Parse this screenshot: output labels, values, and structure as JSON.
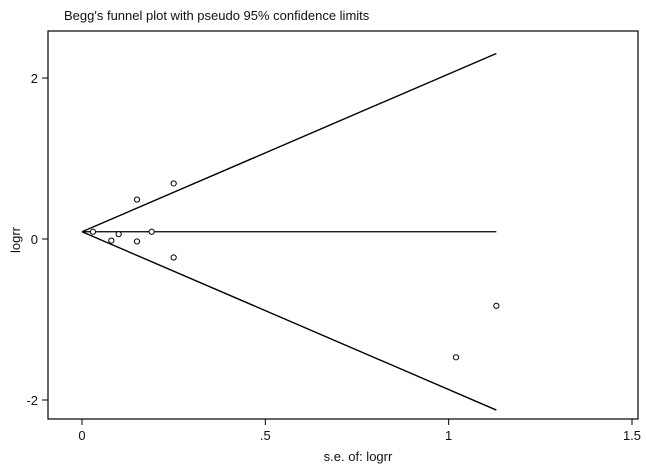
{
  "chart_data": {
    "type": "scatter",
    "title": "Begg's funnel plot with pseudo 95% confidence limits",
    "xlabel": "s.e. of: logrr",
    "ylabel": "logrr",
    "xlim": [
      0,
      1.5
    ],
    "ylim": [
      -2,
      2
    ],
    "x_ticks": [
      {
        "value": 0,
        "label": "0"
      },
      {
        "value": 0.5,
        "label": ".5"
      },
      {
        "value": 1,
        "label": "1"
      },
      {
        "value": 1.5,
        "label": "1.5"
      }
    ],
    "y_ticks": [
      {
        "value": 2,
        "label": "2"
      },
      {
        "value": 0,
        "label": "0"
      },
      {
        "value": -2,
        "label": "-2"
      }
    ],
    "pooled_estimate": 0.09,
    "funnel_se_max": 1.13,
    "confidence_multiplier": 1.96,
    "grid": false,
    "legend": "none",
    "points": [
      {
        "x": 0.03,
        "y": 0.09
      },
      {
        "x": 0.08,
        "y": -0.02
      },
      {
        "x": 0.1,
        "y": 0.06
      },
      {
        "x": 0.15,
        "y": 0.49
      },
      {
        "x": 0.15,
        "y": -0.03
      },
      {
        "x": 0.19,
        "y": 0.09
      },
      {
        "x": 0.25,
        "y": 0.69
      },
      {
        "x": 0.25,
        "y": -0.23
      },
      {
        "x": 1.02,
        "y": -1.47
      },
      {
        "x": 1.13,
        "y": -0.83
      }
    ]
  }
}
